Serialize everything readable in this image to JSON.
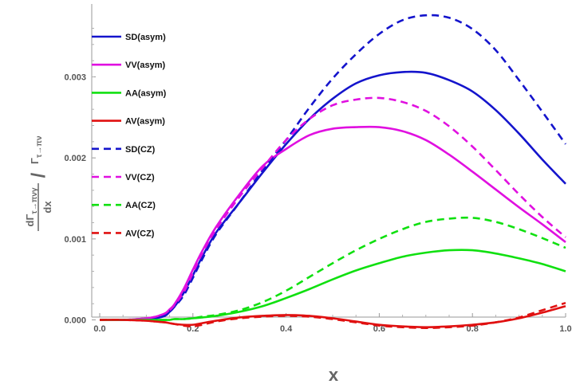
{
  "chart_data": {
    "type": "line",
    "xlabel": "x",
    "ylabel": {
      "numerator": "dΓ",
      "numerator_sub": "τ→πνγ",
      "denominator": "dx",
      "slash": "/",
      "right": "Γ",
      "right_sub": "τ→πν"
    },
    "xlim": [
      0,
      1
    ],
    "ylim": [
      -0.00028,
      0.0039
    ],
    "xticks": [
      "0.0",
      "0.2",
      "0.4",
      "0.6",
      "0.8",
      "1.0"
    ],
    "xtick_values": [
      0,
      0.2,
      0.4,
      0.6,
      0.8,
      1.0
    ],
    "yticks": [
      "0.000",
      "0.001",
      "0.002",
      "0.003"
    ],
    "ytick_values": [
      0,
      0.001,
      0.002,
      0.003
    ],
    "grid": false,
    "legend_position": "top-left",
    "x": [
      0.0,
      0.05,
      0.1,
      0.12,
      0.14,
      0.15,
      0.16,
      0.18,
      0.2,
      0.22,
      0.25,
      0.3,
      0.35,
      0.4,
      0.45,
      0.5,
      0.55,
      0.6,
      0.65,
      0.7,
      0.75,
      0.8,
      0.85,
      0.9,
      0.95,
      1.0
    ],
    "series": [
      {
        "name": "SD(asym)",
        "color": "#1414cc",
        "dash": "solid",
        "values": [
          0,
          0,
          1e-05,
          2e-05,
          5e-05,
          0.0001,
          0.00016,
          0.00033,
          0.00055,
          0.00078,
          0.00108,
          0.00145,
          0.00182,
          0.00217,
          0.00248,
          0.00273,
          0.00292,
          0.00302,
          0.00306,
          0.00305,
          0.00296,
          0.00282,
          0.00259,
          0.0023,
          0.00198,
          0.00168
        ]
      },
      {
        "name": "VV(asym)",
        "color": "#e010e0",
        "dash": "solid",
        "values": [
          0,
          0,
          2e-05,
          4e-05,
          8e-05,
          0.00013,
          0.00019,
          0.00038,
          0.00062,
          0.00085,
          0.00115,
          0.00155,
          0.0019,
          0.00211,
          0.00228,
          0.00236,
          0.00238,
          0.00238,
          0.00233,
          0.00222,
          0.00204,
          0.00183,
          0.00161,
          0.00139,
          0.00118,
          0.00096
        ]
      },
      {
        "name": "AA(asym)",
        "color": "#10e010",
        "dash": "solid",
        "values": [
          0,
          0,
          0,
          0,
          0,
          0,
          1e-05,
          1e-05,
          2e-05,
          3e-05,
          5e-05,
          0.0001,
          0.00017,
          0.00027,
          0.00038,
          0.0005,
          0.00061,
          0.0007,
          0.00078,
          0.00083,
          0.00086,
          0.00086,
          0.00082,
          0.00076,
          0.00069,
          0.0006
        ]
      },
      {
        "name": "AV(asym)",
        "color": "#e01010",
        "dash": "solid",
        "values": [
          0,
          0,
          -1e-05,
          -2e-05,
          -3e-05,
          -4e-05,
          -5e-05,
          -6e-05,
          -6e-05,
          -4e-05,
          -1e-05,
          3e-05,
          5e-05,
          6e-05,
          5e-05,
          2e-05,
          -2e-05,
          -6e-05,
          -8e-05,
          -9e-05,
          -8e-05,
          -6e-05,
          -3e-05,
          2e-05,
          9e-05,
          0.00017
        ]
      },
      {
        "name": "SD(CZ)",
        "color": "#1414cc",
        "dash": "dashed",
        "values": [
          0,
          0,
          1e-05,
          3e-05,
          6e-05,
          0.00011,
          0.00016,
          0.0003,
          0.00052,
          0.00075,
          0.00106,
          0.00145,
          0.00185,
          0.00222,
          0.00262,
          0.00298,
          0.00328,
          0.00353,
          0.0037,
          0.00376,
          0.00373,
          0.00359,
          0.00333,
          0.00296,
          0.00257,
          0.00217
        ]
      },
      {
        "name": "VV(CZ)",
        "color": "#e010e0",
        "dash": "dashed",
        "values": [
          0,
          0,
          2e-05,
          4e-05,
          8e-05,
          0.00012,
          0.00018,
          0.00034,
          0.00058,
          0.00082,
          0.00112,
          0.00152,
          0.00188,
          0.00222,
          0.00248,
          0.00265,
          0.00272,
          0.00274,
          0.00269,
          0.00258,
          0.00239,
          0.00214,
          0.00185,
          0.00155,
          0.00127,
          0.00102
        ]
      },
      {
        "name": "AA(CZ)",
        "color": "#10e010",
        "dash": "dashed",
        "values": [
          0,
          0,
          0,
          0,
          0,
          0,
          1e-05,
          1e-05,
          2e-05,
          4e-05,
          6e-05,
          0.00012,
          0.00022,
          0.00036,
          0.00053,
          0.0007,
          0.00086,
          0.001,
          0.00112,
          0.00121,
          0.00125,
          0.00126,
          0.00121,
          0.00112,
          0.00101,
          0.00089
        ]
      },
      {
        "name": "AV(CZ)",
        "color": "#e01010",
        "dash": "dashed",
        "values": [
          0,
          0,
          -1e-05,
          -2e-05,
          -3e-05,
          -4e-05,
          -5e-05,
          -7e-05,
          -8e-05,
          -6e-05,
          -2e-05,
          2e-05,
          4e-05,
          5e-05,
          4e-05,
          1e-05,
          -3e-05,
          -7e-05,
          -9e-05,
          -0.0001,
          -9e-05,
          -7e-05,
          -3e-05,
          3e-05,
          0.00012,
          0.00021
        ]
      }
    ]
  }
}
